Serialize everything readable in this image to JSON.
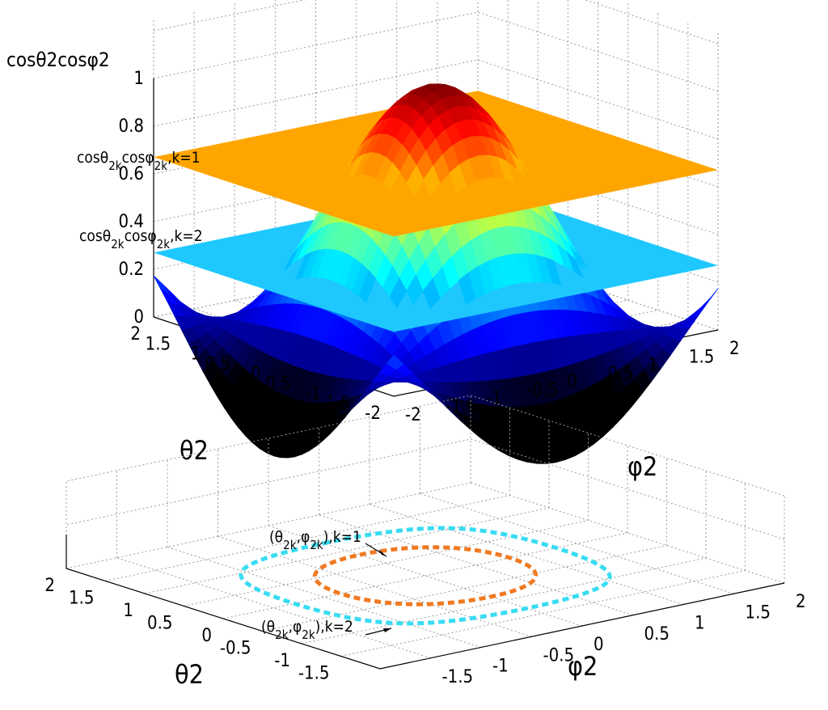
{
  "chart_data": [
    {
      "type": "surface3d",
      "title": "",
      "zlabel": "cosθ2cosφ2",
      "xlabel": "θ2",
      "ylabel": "φ2",
      "z_function": "cos(theta2)*cos(phi2)",
      "xlim": [
        -2,
        2
      ],
      "ylim": [
        -2,
        2
      ],
      "zlim": [
        0,
        1
      ],
      "xticks": [
        "-2",
        "-1.5",
        "-1",
        "-0.5",
        "0",
        "0.5",
        "1",
        "1.5",
        "2"
      ],
      "yticks": [
        "-2",
        "-1.5",
        "-1",
        "-0.5",
        "0",
        "0.5",
        "1",
        "1.5",
        "2"
      ],
      "zticks": [
        "0",
        "0.2",
        "0.4",
        "0.6",
        "0.8",
        "1"
      ],
      "colormap": "jet",
      "grid": true,
      "planes": [
        {
          "label_main": "cosθ",
          "label_sub1": "2k",
          "label_mid": "cosφ",
          "label_sub2": "2k",
          "label_tail": ",k=1",
          "z": 0.67,
          "color": "#ffa500"
        },
        {
          "label_main": "cosθ",
          "label_sub1": "2k",
          "label_mid": "cosφ",
          "label_sub2": "2k",
          "label_tail": ",k=2",
          "z": 0.27,
          "color": "#1ec8ff"
        }
      ]
    },
    {
      "type": "contour",
      "xlabel": "θ2",
      "ylabel": "φ2",
      "xlim": [
        -2,
        2
      ],
      "ylim": [
        -2,
        2
      ],
      "xticks": [
        "-1.5",
        "-1",
        "-0.5",
        "0",
        "0.5",
        "1",
        "1.5",
        "2"
      ],
      "yticks": [
        "-1.5",
        "-1",
        "-0.5",
        "0",
        "0.5",
        "1",
        "1.5",
        "2"
      ],
      "grid": true,
      "contours": [
        {
          "label_tail": "),k=1",
          "level": 0.67,
          "color": "#ef7a22"
        },
        {
          "label_tail": "),k=2",
          "level": 0.27,
          "color": "#38dcf2"
        }
      ]
    }
  ],
  "colors": {
    "axis": "#000000",
    "grid": "#9a9a9a",
    "plane_k1": "#ffa500",
    "plane_k2": "#1ec8ff",
    "contour_k1": "#ef7a22",
    "contour_k2": "#38dcf2"
  }
}
